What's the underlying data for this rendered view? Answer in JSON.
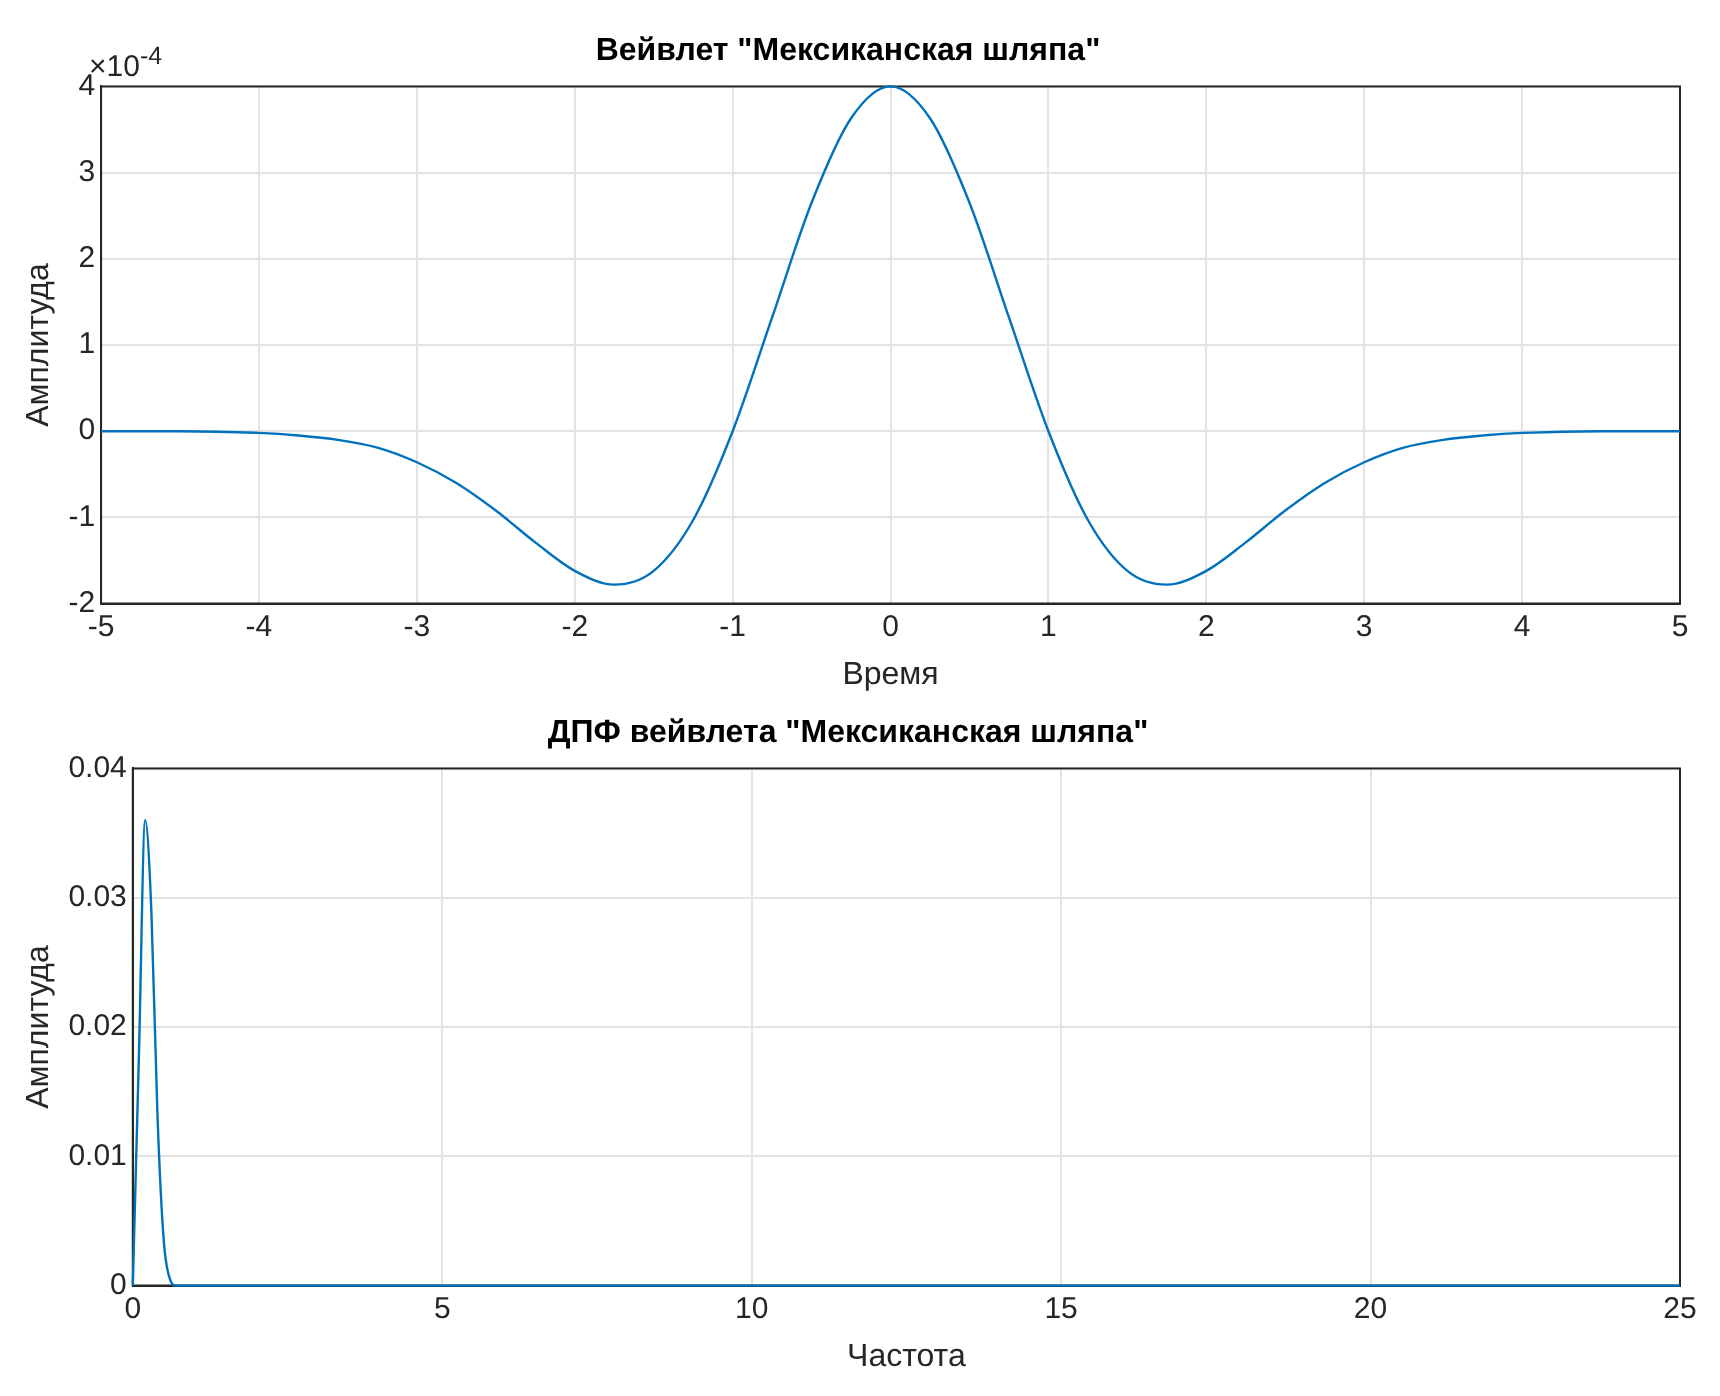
{
  "chart_data": [
    {
      "type": "line",
      "title": "Вейвлет \"Мексиканская шляпа\"",
      "xlabel": "Время",
      "ylabel": "Амплитуда",
      "x": [
        -5,
        -4.5,
        -4,
        -3.75,
        -3.5,
        -3.25,
        -3,
        -2.75,
        -2.5,
        -2.25,
        -2,
        -1.75,
        -1.5,
        -1.25,
        -1,
        -0.75,
        -0.5,
        -0.25,
        0,
        0.25,
        0.5,
        0.75,
        1,
        1.25,
        1.5,
        1.75,
        2,
        2.25,
        2.5,
        2.75,
        3,
        3.25,
        3.5,
        3.75,
        4,
        4.5,
        5
      ],
      "series": [
        {
          "color": "#0072bd",
          "values": [
            0,
            0,
            -0.02,
            -0.05,
            -0.1,
            -0.19,
            -0.36,
            -0.6,
            -0.92,
            -1.29,
            -1.62,
            -1.78,
            -1.62,
            -1.03,
            0,
            1.32,
            2.65,
            3.63,
            4,
            3.63,
            2.65,
            1.32,
            0,
            -1.03,
            -1.62,
            -1.78,
            -1.62,
            -1.29,
            -0.92,
            -0.6,
            -0.36,
            -0.19,
            -0.1,
            -0.05,
            -0.02,
            0,
            0
          ]
        }
      ],
      "xlim": [
        -5,
        5
      ],
      "xticks": [
        -5,
        -4,
        -3,
        -2,
        -1,
        0,
        1,
        2,
        3,
        4,
        5
      ],
      "ylim": [
        -2,
        4
      ],
      "yticks": [
        -2,
        -1,
        0,
        1,
        2,
        3,
        4
      ],
      "annotations": [
        "×10$^{-4}$"
      ],
      "grid": true,
      "marker": "none",
      "line_style": "solid"
    },
    {
      "type": "line",
      "title": "ДПФ вейвлета \"Мексиканская шляпа\"",
      "xlabel": "Частота",
      "ylabel": "Амплитуда",
      "x": [
        0,
        0.1,
        0.2,
        0.3,
        0.4,
        0.5,
        0.6,
        0.7,
        25
      ],
      "series": [
        {
          "color": "#0072bd",
          "values": [
            0,
            0.018,
            0.036,
            0.029,
            0.013,
            0.0035,
            0.0005,
            0,
            0
          ]
        }
      ],
      "xlim": [
        0,
        25
      ],
      "xticks": [
        0,
        5,
        10,
        15,
        20,
        25
      ],
      "ylim": [
        0,
        0.04
      ],
      "yticks": [
        0,
        0.01,
        0.02,
        0.03,
        0.04
      ],
      "grid": true,
      "marker": "none",
      "line_style": "solid"
    }
  ]
}
